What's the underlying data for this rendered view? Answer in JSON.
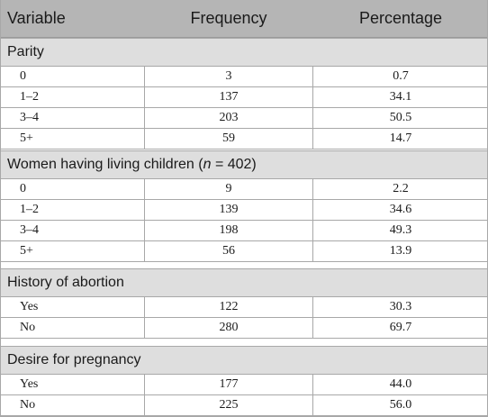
{
  "header": {
    "variable": "Variable",
    "frequency": "Frequency",
    "percentage": "Percentage"
  },
  "sections": [
    {
      "title": "Parity",
      "rows": [
        {
          "label": "0",
          "frequency": "3",
          "percentage": "0.7"
        },
        {
          "label": "1–2",
          "frequency": "137",
          "percentage": "34.1"
        },
        {
          "label": "3–4",
          "frequency": "203",
          "percentage": "50.5"
        },
        {
          "label": "5+",
          "frequency": "59",
          "percentage": "14.7"
        }
      ]
    },
    {
      "title_prefix": "Women having living children (",
      "title_italic": "n",
      "title_suffix": " = 402)",
      "rows": [
        {
          "label": "0",
          "frequency": "9",
          "percentage": "2.2"
        },
        {
          "label": "1–2",
          "frequency": "139",
          "percentage": "34.6"
        },
        {
          "label": "3–4",
          "frequency": "198",
          "percentage": "49.3"
        },
        {
          "label": "5+",
          "frequency": "56",
          "percentage": "13.9"
        }
      ]
    },
    {
      "title": "History of abortion",
      "rows": [
        {
          "label": "Yes",
          "frequency": "122",
          "percentage": "30.3"
        },
        {
          "label": "No",
          "frequency": "280",
          "percentage": "69.7"
        }
      ]
    },
    {
      "title": "Desire for pregnancy",
      "rows": [
        {
          "label": "Yes",
          "frequency": "177",
          "percentage": "44.0"
        },
        {
          "label": "No",
          "frequency": "225",
          "percentage": "56.0"
        }
      ]
    }
  ]
}
